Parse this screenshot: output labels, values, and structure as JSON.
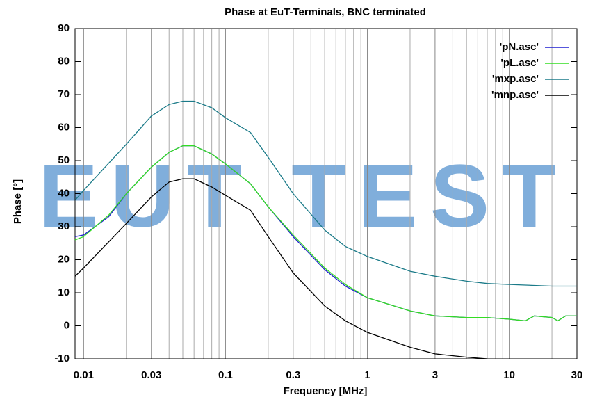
{
  "chart_data": {
    "type": "line",
    "title": "Phase at EuT-Terminals, BNC terminated",
    "xlabel": "Frequency [MHz]",
    "ylabel": "Phase [°]",
    "watermark": "EUT TEST",
    "log_x": true,
    "xlim": [
      0.0087,
      30
    ],
    "ylim": [
      -10,
      90
    ],
    "xticks": [
      0.01,
      0.03,
      0.1,
      0.3,
      1,
      3,
      10,
      30
    ],
    "x_minor_ticks": [
      0.02,
      0.04,
      0.05,
      0.06,
      0.07,
      0.08,
      0.09,
      0.2,
      0.4,
      0.5,
      0.6,
      0.7,
      0.8,
      0.9,
      2,
      4,
      5,
      6,
      7,
      8,
      9,
      20
    ],
    "yticks": [
      -10,
      0,
      10,
      20,
      30,
      40,
      50,
      60,
      70,
      80,
      90
    ],
    "legend": "top-right",
    "series": [
      {
        "name": "'pN.asc'",
        "color": "#1f1fd0",
        "x": [
          0.0087,
          0.01,
          0.015,
          0.02,
          0.03,
          0.04,
          0.05,
          0.06,
          0.08,
          0.1,
          0.15,
          0.2,
          0.3,
          0.5,
          0.7,
          1,
          2,
          3,
          5,
          7,
          10,
          13,
          15,
          20,
          22,
          25,
          30
        ],
        "values": [
          27,
          27.5,
          33,
          40,
          48,
          52.5,
          54.5,
          54.5,
          52,
          49,
          43,
          36,
          27,
          17,
          12,
          8.5,
          4.5,
          3,
          2.5,
          2.5,
          2,
          1.5,
          3,
          2.5,
          1.5,
          3,
          3
        ]
      },
      {
        "name": "'pL.asc'",
        "color": "#33dd22",
        "x": [
          0.0087,
          0.01,
          0.015,
          0.02,
          0.03,
          0.04,
          0.05,
          0.06,
          0.08,
          0.1,
          0.15,
          0.2,
          0.3,
          0.5,
          0.7,
          1,
          2,
          3,
          5,
          7,
          10,
          13,
          15,
          20,
          22,
          25,
          30
        ],
        "values": [
          26,
          27,
          33.5,
          40,
          48,
          52.5,
          54.5,
          54.5,
          52,
          49,
          43,
          36,
          27.5,
          17.5,
          12.5,
          8.5,
          4.5,
          3,
          2.5,
          2.5,
          2,
          1.5,
          3,
          2.5,
          1.5,
          3,
          3
        ]
      },
      {
        "name": "'mxp.asc'",
        "color": "#1a7a88",
        "x": [
          0.0087,
          0.01,
          0.02,
          0.03,
          0.04,
          0.05,
          0.06,
          0.08,
          0.1,
          0.15,
          0.2,
          0.3,
          0.5,
          0.7,
          1,
          2,
          3,
          5,
          7,
          10,
          20,
          30
        ],
        "values": [
          38,
          41,
          55,
          63.5,
          67,
          68,
          68,
          66,
          63,
          58.5,
          51,
          40,
          29,
          24,
          21,
          16.5,
          15,
          13.5,
          12.8,
          12.5,
          12,
          12
        ]
      },
      {
        "name": "'mnp.asc'",
        "color": "#000000",
        "x": [
          0.0087,
          0.01,
          0.02,
          0.03,
          0.04,
          0.05,
          0.06,
          0.08,
          0.1,
          0.15,
          0.2,
          0.3,
          0.5,
          0.7,
          1,
          2,
          3,
          5,
          7
        ],
        "values": [
          15,
          17.5,
          31,
          39,
          43.5,
          44.5,
          44.5,
          42,
          39.5,
          35,
          27,
          16,
          6,
          1.5,
          -2,
          -6.5,
          -8.5,
          -9.5,
          -10
        ]
      }
    ]
  }
}
